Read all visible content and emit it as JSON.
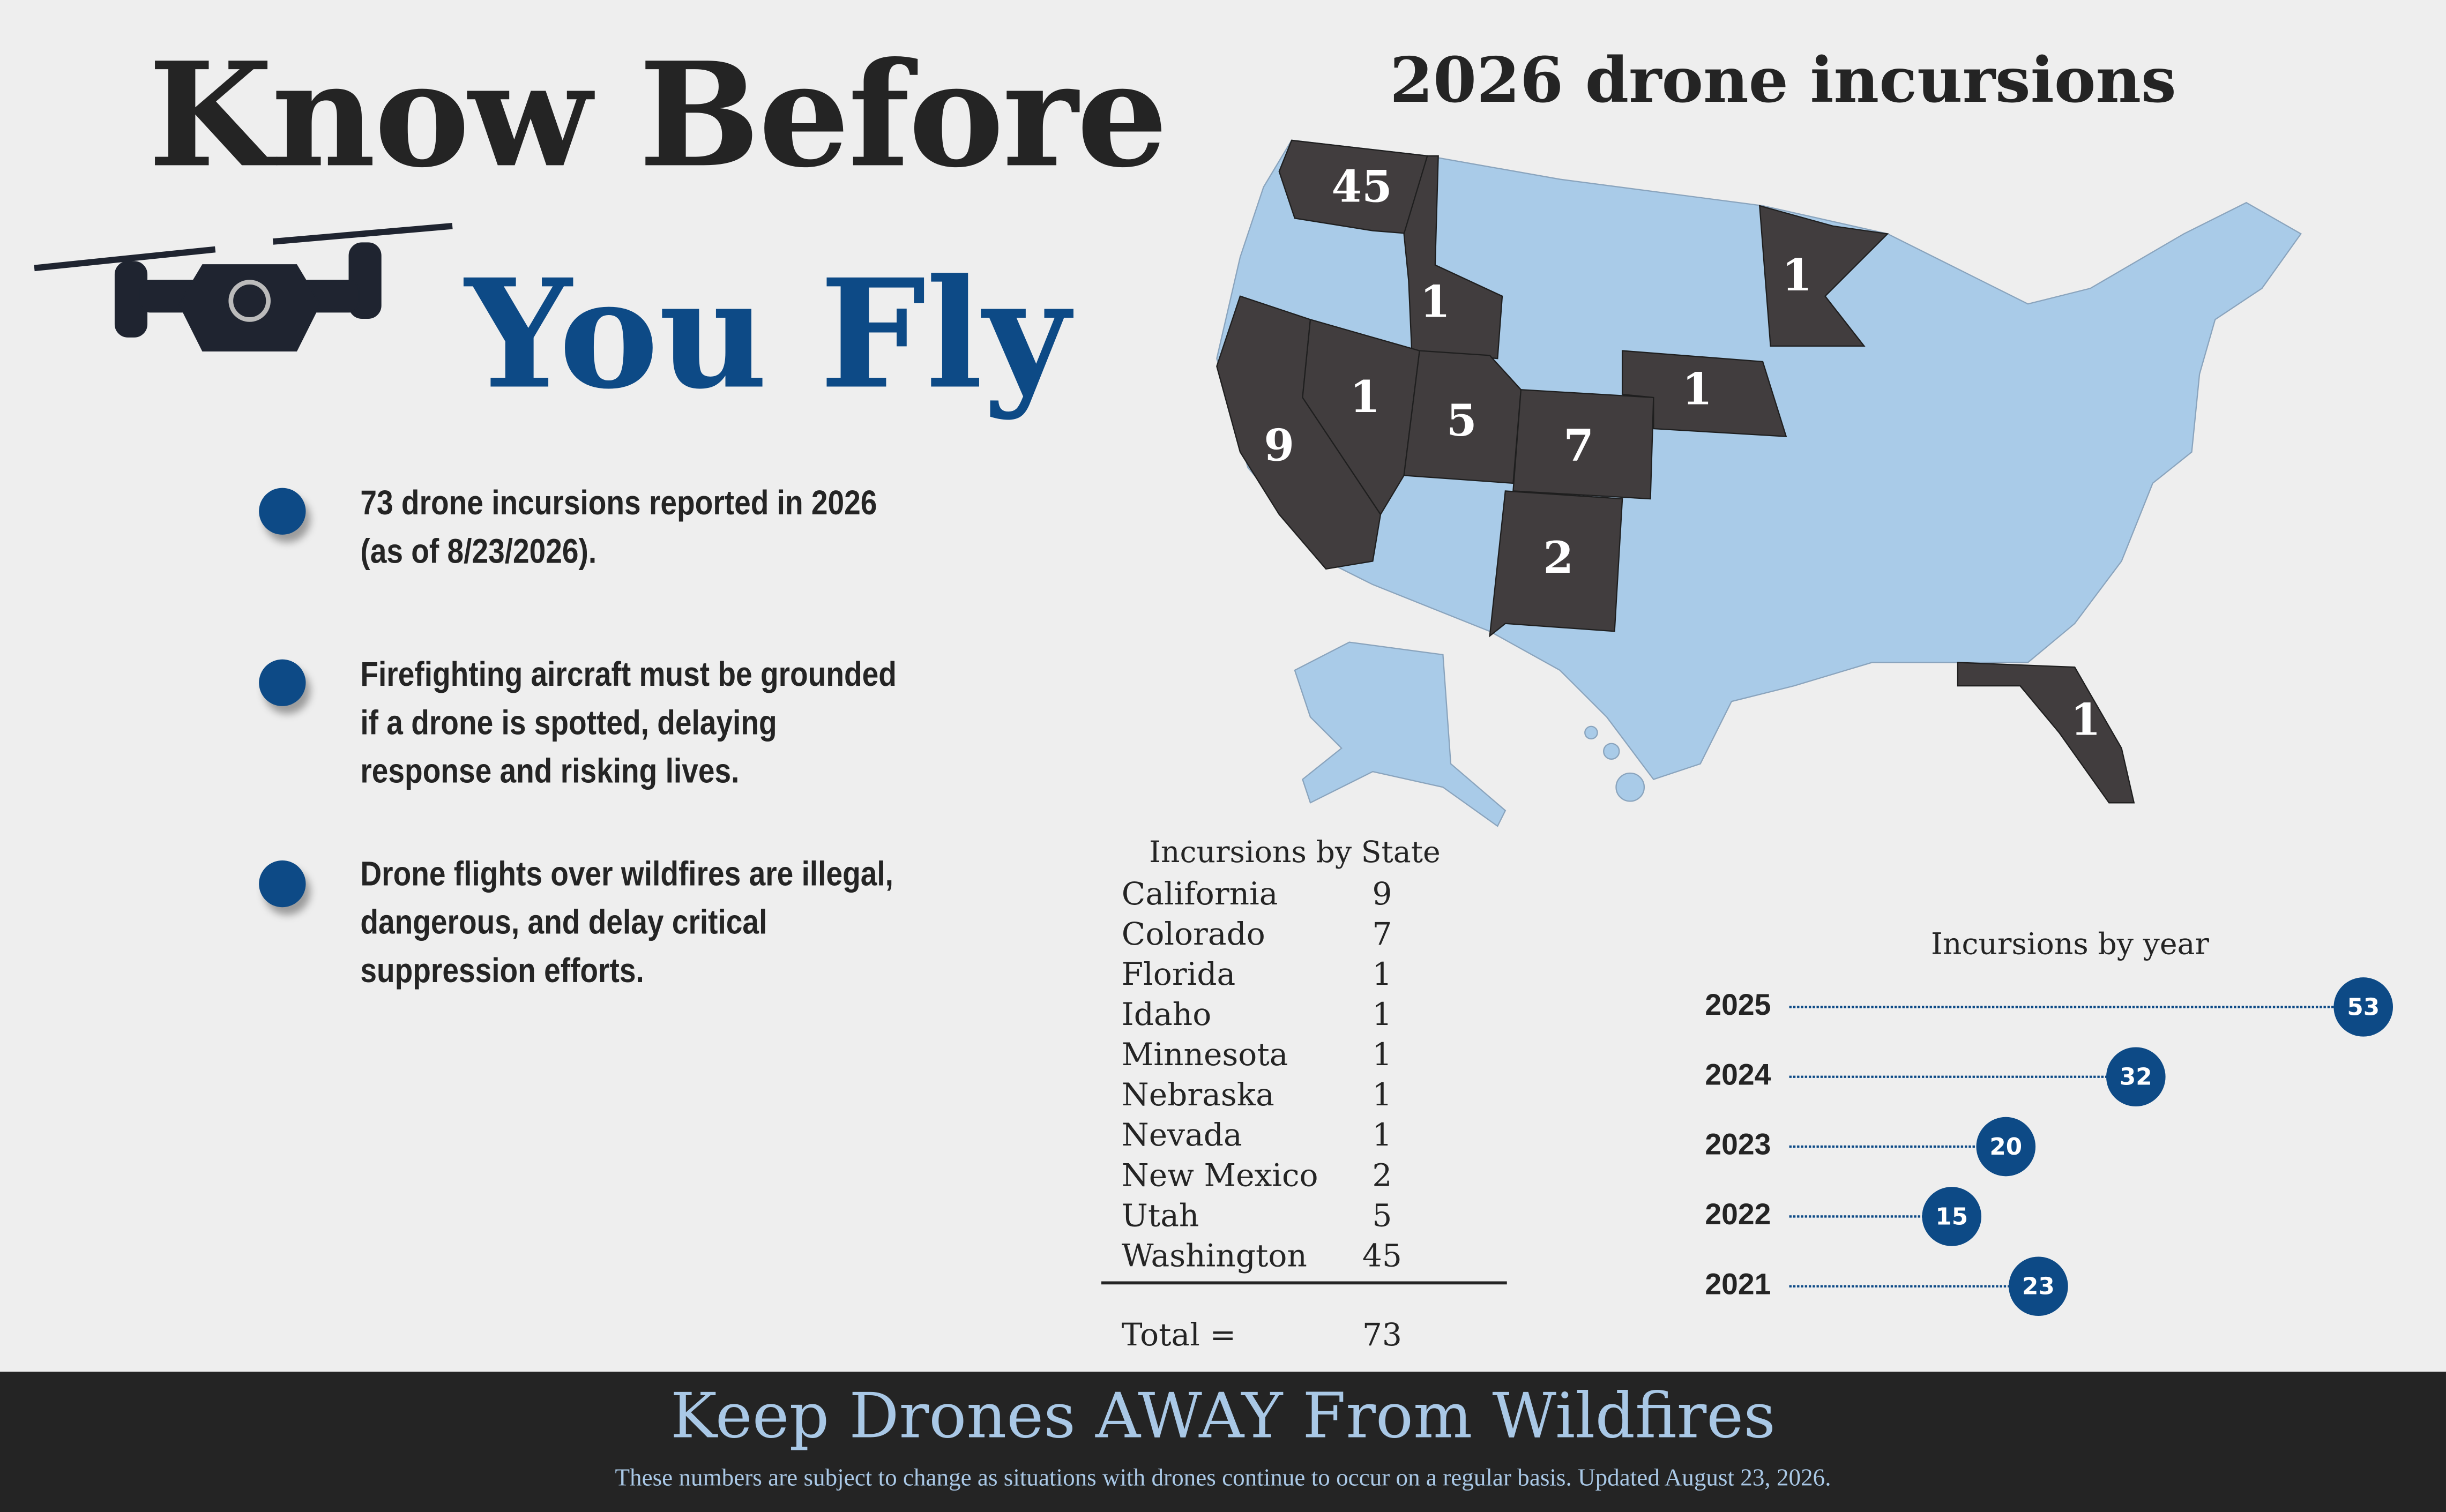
{
  "header": {
    "title_line1": "Know Before",
    "title_line2": "You Fly"
  },
  "bullets": [
    "73 drone incursions reported in 2026 (as of 8/23/2026).",
    "Firefighting aircraft must be grounded if a drone is spotted, delaying response and risking lives.",
    "Drone flights over wildfires are illegal, dangerous, and delay critical suppression efforts."
  ],
  "map": {
    "title": "2026 drone incursions"
  },
  "table": {
    "title": "Incursions by State",
    "rows": [
      [
        "California",
        9
      ],
      [
        "Colorado",
        7
      ],
      [
        "Florida",
        1
      ],
      [
        "Idaho",
        1
      ],
      [
        "Minnesota",
        1
      ],
      [
        "Nebraska",
        1
      ],
      [
        "Nevada",
        1
      ],
      [
        "New Mexico",
        2
      ],
      [
        "Utah",
        5
      ],
      [
        "Washington",
        45
      ]
    ],
    "total_label": "Total =",
    "total": 73
  },
  "year_chart": {
    "type": "lollipop",
    "title": "Incursions by year",
    "categories": [
      "2025",
      "2024",
      "2023",
      "2022",
      "2021"
    ],
    "values": [
      53,
      32,
      20,
      15,
      23
    ],
    "color": "#0d4a86"
  },
  "footer": {
    "title": "Keep Drones AWAY From Wildfires",
    "note": "These numbers are subject to change as situations with drones continue to occur on a regular basis. Updated August 23, 2026."
  }
}
